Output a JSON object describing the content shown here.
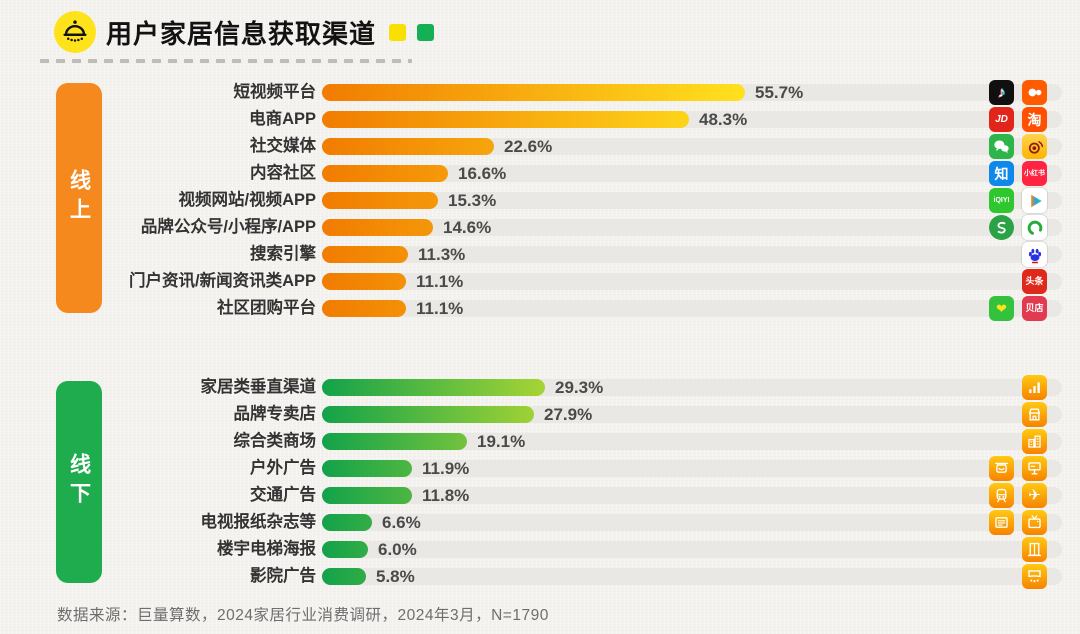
{
  "header": {
    "title": "用户家居信息获取渠道",
    "logo_icon": "lamp-icon",
    "legend": {
      "online_color": "#F8E100",
      "offline_color": "#14B053"
    }
  },
  "footer": {
    "source": "数据来源：巨量算数，2024家居行业消费调研，2024年3月，N=1790"
  },
  "colors": {
    "background": "#F4F2EE",
    "track": "#E9E8E4",
    "online_pill": "#F6891E",
    "offline_pill": "#1FAC4F",
    "online_bar_from": "#F17C01",
    "online_bar_to": "#FFE11E",
    "offline_bar_from": "#12A24A",
    "offline_bar_to": "#A6D435",
    "offline_icon_bg": "linear-gradient(180deg,#FFC913,#F68300)"
  },
  "chart_data": {
    "type": "bar",
    "orientation": "horizontal",
    "title": "用户家居信息获取渠道",
    "unit": "%",
    "xlim": [
      0,
      60
    ],
    "grid": false,
    "groups": [
      {
        "name": "线上",
        "categories": [
          "短视频平台",
          "电商APP",
          "社交媒体",
          "内容社区",
          "视频网站/视频APP",
          "品牌公众号/小程序/APP",
          "搜索引擎",
          "门户资讯/新闻资讯类APP",
          "社区团购平台"
        ],
        "values": [
          55.7,
          48.3,
          22.6,
          16.6,
          15.3,
          14.6,
          11.3,
          11.1,
          11.1
        ]
      },
      {
        "name": "线下",
        "categories": [
          "家居类垂直渠道",
          "品牌专卖店",
          "综合类商场",
          "户外广告",
          "交通广告",
          "电视报纸杂志等",
          "楼宇电梯海报",
          "影院广告"
        ],
        "values": [
          29.3,
          27.9,
          19.1,
          11.9,
          11.8,
          6.6,
          6.0,
          5.8
        ]
      }
    ],
    "source": "数据来源：巨量算数，2024家居行业消费调研，2024年3月，N=1790"
  },
  "sections": [
    {
      "name": "online",
      "side_label": "线上",
      "pill_color": "#F6891E",
      "gradient_from": "#F17C01",
      "gradient_to": "#FFE11E",
      "gradient_span_pct": 55.7,
      "rows": [
        {
          "label": "短视频平台",
          "value": 55.7,
          "value_label": "55.7%",
          "icons": [
            "douyin",
            "kuaishou"
          ]
        },
        {
          "label": "电商APP",
          "value": 48.3,
          "value_label": "48.3%",
          "icons": [
            "jd",
            "taobao"
          ]
        },
        {
          "label": "社交媒体",
          "value": 22.6,
          "value_label": "22.6%",
          "icons": [
            "wechat",
            "weibo"
          ]
        },
        {
          "label": "内容社区",
          "value": 16.6,
          "value_label": "16.6%",
          "icons": [
            "zhihu",
            "xiaohongshu"
          ]
        },
        {
          "label": "视频网站/视频APP",
          "value": 15.3,
          "value_label": "15.3%",
          "icons": [
            "iqiyi",
            "tencent-video"
          ]
        },
        {
          "label": "品牌公众号/小程序/APP",
          "value": 14.6,
          "value_label": "14.6%",
          "icons": [
            "wechat-channels",
            "mini-program"
          ]
        },
        {
          "label": "搜索引擎",
          "value": 11.3,
          "value_label": "11.3%",
          "icons": [
            "baidu"
          ]
        },
        {
          "label": "门户资讯/新闻资讯类APP",
          "value": 11.1,
          "value_label": "11.1%",
          "icons": [
            "toutiao"
          ]
        },
        {
          "label": "社区团购平台",
          "value": 11.1,
          "value_label": "11.1%",
          "icons": [
            "meituan-youxuan",
            "beidian"
          ]
        }
      ]
    },
    {
      "name": "offline",
      "side_label": "线下",
      "pill_color": "#1FAC4F",
      "gradient_from": "#12A24A",
      "gradient_to": "#A6D435",
      "gradient_span_pct": 29.3,
      "rows": [
        {
          "label": "家居类垂直渠道",
          "value": 29.3,
          "value_label": "29.3%",
          "icons": [
            "vertical-channel"
          ]
        },
        {
          "label": "品牌专卖店",
          "value": 27.9,
          "value_label": "27.9%",
          "icons": [
            "storefront"
          ]
        },
        {
          "label": "综合类商场",
          "value": 19.1,
          "value_label": "19.1%",
          "icons": [
            "mall"
          ]
        },
        {
          "label": "户外广告",
          "value": 11.9,
          "value_label": "11.9%",
          "icons": [
            "signboard",
            "billboard"
          ]
        },
        {
          "label": "交通广告",
          "value": 11.8,
          "value_label": "11.8%",
          "icons": [
            "train",
            "airplane"
          ]
        },
        {
          "label": "电视报纸杂志等",
          "value": 6.6,
          "value_label": "6.6%",
          "icons": [
            "newspaper",
            "tv"
          ]
        },
        {
          "label": "楼宇电梯海报",
          "value": 6.0,
          "value_label": "6.0%",
          "icons": [
            "elevator"
          ]
        },
        {
          "label": "影院广告",
          "value": 5.8,
          "value_label": "5.8%",
          "icons": [
            "cinema"
          ]
        }
      ]
    }
  ],
  "icon_defs": {
    "douyin": {
      "bg": "#101010",
      "kind": "text",
      "glyph": "♪",
      "color": "#fff",
      "size": 15,
      "shadow": "1px 0 0 #25F4EE, -1px 1px 0 #FE2C55"
    },
    "kuaishou": {
      "bg": "#FF5B00",
      "kind": "shape",
      "shape": "kuaishou"
    },
    "jd": {
      "bg": "#E1251B",
      "kind": "text",
      "glyph": "JD",
      "color": "#fff",
      "size": 10,
      "italic": true
    },
    "taobao": {
      "bg": "#FF5000",
      "kind": "text",
      "glyph": "淘",
      "color": "#fff",
      "size": 14
    },
    "wechat": {
      "bg": "#2DB54A",
      "kind": "shape",
      "shape": "wechat"
    },
    "weibo": {
      "bg": "linear-gradient(180deg,#FFD34E,#FFB400)",
      "kind": "shape",
      "shape": "weibo"
    },
    "zhihu": {
      "bg": "#0F88EB",
      "kind": "text",
      "glyph": "知",
      "color": "#fff",
      "size": 14
    },
    "xiaohongshu": {
      "bg": "#FF2442",
      "kind": "text",
      "glyph": "小红书",
      "color": "#fff",
      "size": 7
    },
    "iqiyi": {
      "bg": "#2EC72E",
      "kind": "text",
      "glyph": "iQIYI",
      "color": "#fff",
      "size": 7
    },
    "tencent-video": {
      "bg": "#FFFFFF",
      "kind": "shape",
      "shape": "tencent-play",
      "border": true
    },
    "wechat-channels": {
      "bg": "#2BA245",
      "kind": "shape",
      "shape": "s-curve",
      "round": true
    },
    "mini-program": {
      "bg": "#FFFFFF",
      "kind": "shape",
      "shape": "mini-ring",
      "border": true
    },
    "baidu": {
      "bg": "#FFFFFF",
      "kind": "shape",
      "shape": "paw",
      "border": true
    },
    "toutiao": {
      "bg": "#E0291D",
      "kind": "text",
      "glyph": "头条",
      "color": "#fff",
      "size": 9
    },
    "meituan-youxuan": {
      "bg": "#34C13B",
      "kind": "text",
      "glyph": "❤",
      "color": "#FFE11E",
      "size": 13
    },
    "beidian": {
      "bg": "#E23A51",
      "kind": "text",
      "glyph": "贝店",
      "color": "#fff",
      "size": 9
    },
    "vertical-channel": {
      "bg": "linear-gradient(180deg,#FFC913,#F68300)",
      "kind": "shape",
      "shape": "growth"
    },
    "storefront": {
      "bg": "linear-gradient(180deg,#FFC913,#F68300)",
      "kind": "shape",
      "shape": "store"
    },
    "mall": {
      "bg": "linear-gradient(180deg,#FFC913,#F68300)",
      "kind": "shape",
      "shape": "mall"
    },
    "signboard": {
      "bg": "linear-gradient(180deg,#FFC913,#F68300)",
      "kind": "shape",
      "shape": "signboard"
    },
    "billboard": {
      "bg": "linear-gradient(180deg,#FFC913,#F68300)",
      "kind": "shape",
      "shape": "billboard"
    },
    "train": {
      "bg": "linear-gradient(180deg,#FFC913,#F68300)",
      "kind": "shape",
      "shape": "train"
    },
    "airplane": {
      "bg": "linear-gradient(180deg,#FFC913,#F68300)",
      "kind": "text",
      "glyph": "✈",
      "color": "#fff",
      "size": 15
    },
    "newspaper": {
      "bg": "linear-gradient(180deg,#FFC913,#F68300)",
      "kind": "shape",
      "shape": "newspaper"
    },
    "tv": {
      "bg": "linear-gradient(180deg,#FFC913,#F68300)",
      "kind": "shape",
      "shape": "tv"
    },
    "elevator": {
      "bg": "linear-gradient(180deg,#FFC913,#F68300)",
      "kind": "shape",
      "shape": "elevator"
    },
    "cinema": {
      "bg": "linear-gradient(180deg,#FFC913,#F68300)",
      "kind": "shape",
      "shape": "cinema"
    }
  }
}
